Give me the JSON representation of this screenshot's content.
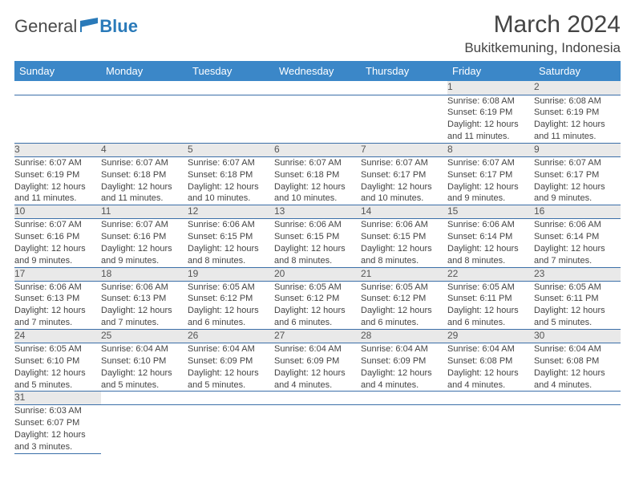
{
  "logo": {
    "text1": "General",
    "text2": "Blue"
  },
  "title": "March 2024",
  "location": "Bukitkemuning, Indonesia",
  "colors": {
    "header_bg": "#3b87c8",
    "header_fg": "#ffffff",
    "daynum_bg": "#e9e9e9",
    "row_border": "#3b6fa8",
    "text": "#444444"
  },
  "weekdays": [
    "Sunday",
    "Monday",
    "Tuesday",
    "Wednesday",
    "Thursday",
    "Friday",
    "Saturday"
  ],
  "weeks": [
    [
      null,
      null,
      null,
      null,
      null,
      {
        "n": "1",
        "sr": "Sunrise: 6:08 AM",
        "ss": "Sunset: 6:19 PM",
        "dl1": "Daylight: 12 hours",
        "dl2": "and 11 minutes."
      },
      {
        "n": "2",
        "sr": "Sunrise: 6:08 AM",
        "ss": "Sunset: 6:19 PM",
        "dl1": "Daylight: 12 hours",
        "dl2": "and 11 minutes."
      }
    ],
    [
      {
        "n": "3",
        "sr": "Sunrise: 6:07 AM",
        "ss": "Sunset: 6:19 PM",
        "dl1": "Daylight: 12 hours",
        "dl2": "and 11 minutes."
      },
      {
        "n": "4",
        "sr": "Sunrise: 6:07 AM",
        "ss": "Sunset: 6:18 PM",
        "dl1": "Daylight: 12 hours",
        "dl2": "and 11 minutes."
      },
      {
        "n": "5",
        "sr": "Sunrise: 6:07 AM",
        "ss": "Sunset: 6:18 PM",
        "dl1": "Daylight: 12 hours",
        "dl2": "and 10 minutes."
      },
      {
        "n": "6",
        "sr": "Sunrise: 6:07 AM",
        "ss": "Sunset: 6:18 PM",
        "dl1": "Daylight: 12 hours",
        "dl2": "and 10 minutes."
      },
      {
        "n": "7",
        "sr": "Sunrise: 6:07 AM",
        "ss": "Sunset: 6:17 PM",
        "dl1": "Daylight: 12 hours",
        "dl2": "and 10 minutes."
      },
      {
        "n": "8",
        "sr": "Sunrise: 6:07 AM",
        "ss": "Sunset: 6:17 PM",
        "dl1": "Daylight: 12 hours",
        "dl2": "and 9 minutes."
      },
      {
        "n": "9",
        "sr": "Sunrise: 6:07 AM",
        "ss": "Sunset: 6:17 PM",
        "dl1": "Daylight: 12 hours",
        "dl2": "and 9 minutes."
      }
    ],
    [
      {
        "n": "10",
        "sr": "Sunrise: 6:07 AM",
        "ss": "Sunset: 6:16 PM",
        "dl1": "Daylight: 12 hours",
        "dl2": "and 9 minutes."
      },
      {
        "n": "11",
        "sr": "Sunrise: 6:07 AM",
        "ss": "Sunset: 6:16 PM",
        "dl1": "Daylight: 12 hours",
        "dl2": "and 9 minutes."
      },
      {
        "n": "12",
        "sr": "Sunrise: 6:06 AM",
        "ss": "Sunset: 6:15 PM",
        "dl1": "Daylight: 12 hours",
        "dl2": "and 8 minutes."
      },
      {
        "n": "13",
        "sr": "Sunrise: 6:06 AM",
        "ss": "Sunset: 6:15 PM",
        "dl1": "Daylight: 12 hours",
        "dl2": "and 8 minutes."
      },
      {
        "n": "14",
        "sr": "Sunrise: 6:06 AM",
        "ss": "Sunset: 6:15 PM",
        "dl1": "Daylight: 12 hours",
        "dl2": "and 8 minutes."
      },
      {
        "n": "15",
        "sr": "Sunrise: 6:06 AM",
        "ss": "Sunset: 6:14 PM",
        "dl1": "Daylight: 12 hours",
        "dl2": "and 8 minutes."
      },
      {
        "n": "16",
        "sr": "Sunrise: 6:06 AM",
        "ss": "Sunset: 6:14 PM",
        "dl1": "Daylight: 12 hours",
        "dl2": "and 7 minutes."
      }
    ],
    [
      {
        "n": "17",
        "sr": "Sunrise: 6:06 AM",
        "ss": "Sunset: 6:13 PM",
        "dl1": "Daylight: 12 hours",
        "dl2": "and 7 minutes."
      },
      {
        "n": "18",
        "sr": "Sunrise: 6:06 AM",
        "ss": "Sunset: 6:13 PM",
        "dl1": "Daylight: 12 hours",
        "dl2": "and 7 minutes."
      },
      {
        "n": "19",
        "sr": "Sunrise: 6:05 AM",
        "ss": "Sunset: 6:12 PM",
        "dl1": "Daylight: 12 hours",
        "dl2": "and 6 minutes."
      },
      {
        "n": "20",
        "sr": "Sunrise: 6:05 AM",
        "ss": "Sunset: 6:12 PM",
        "dl1": "Daylight: 12 hours",
        "dl2": "and 6 minutes."
      },
      {
        "n": "21",
        "sr": "Sunrise: 6:05 AM",
        "ss": "Sunset: 6:12 PM",
        "dl1": "Daylight: 12 hours",
        "dl2": "and 6 minutes."
      },
      {
        "n": "22",
        "sr": "Sunrise: 6:05 AM",
        "ss": "Sunset: 6:11 PM",
        "dl1": "Daylight: 12 hours",
        "dl2": "and 6 minutes."
      },
      {
        "n": "23",
        "sr": "Sunrise: 6:05 AM",
        "ss": "Sunset: 6:11 PM",
        "dl1": "Daylight: 12 hours",
        "dl2": "and 5 minutes."
      }
    ],
    [
      {
        "n": "24",
        "sr": "Sunrise: 6:05 AM",
        "ss": "Sunset: 6:10 PM",
        "dl1": "Daylight: 12 hours",
        "dl2": "and 5 minutes."
      },
      {
        "n": "25",
        "sr": "Sunrise: 6:04 AM",
        "ss": "Sunset: 6:10 PM",
        "dl1": "Daylight: 12 hours",
        "dl2": "and 5 minutes."
      },
      {
        "n": "26",
        "sr": "Sunrise: 6:04 AM",
        "ss": "Sunset: 6:09 PM",
        "dl1": "Daylight: 12 hours",
        "dl2": "and 5 minutes."
      },
      {
        "n": "27",
        "sr": "Sunrise: 6:04 AM",
        "ss": "Sunset: 6:09 PM",
        "dl1": "Daylight: 12 hours",
        "dl2": "and 4 minutes."
      },
      {
        "n": "28",
        "sr": "Sunrise: 6:04 AM",
        "ss": "Sunset: 6:09 PM",
        "dl1": "Daylight: 12 hours",
        "dl2": "and 4 minutes."
      },
      {
        "n": "29",
        "sr": "Sunrise: 6:04 AM",
        "ss": "Sunset: 6:08 PM",
        "dl1": "Daylight: 12 hours",
        "dl2": "and 4 minutes."
      },
      {
        "n": "30",
        "sr": "Sunrise: 6:04 AM",
        "ss": "Sunset: 6:08 PM",
        "dl1": "Daylight: 12 hours",
        "dl2": "and 4 minutes."
      }
    ],
    [
      {
        "n": "31",
        "sr": "Sunrise: 6:03 AM",
        "ss": "Sunset: 6:07 PM",
        "dl1": "Daylight: 12 hours",
        "dl2": "and 3 minutes."
      },
      null,
      null,
      null,
      null,
      null,
      null
    ]
  ]
}
